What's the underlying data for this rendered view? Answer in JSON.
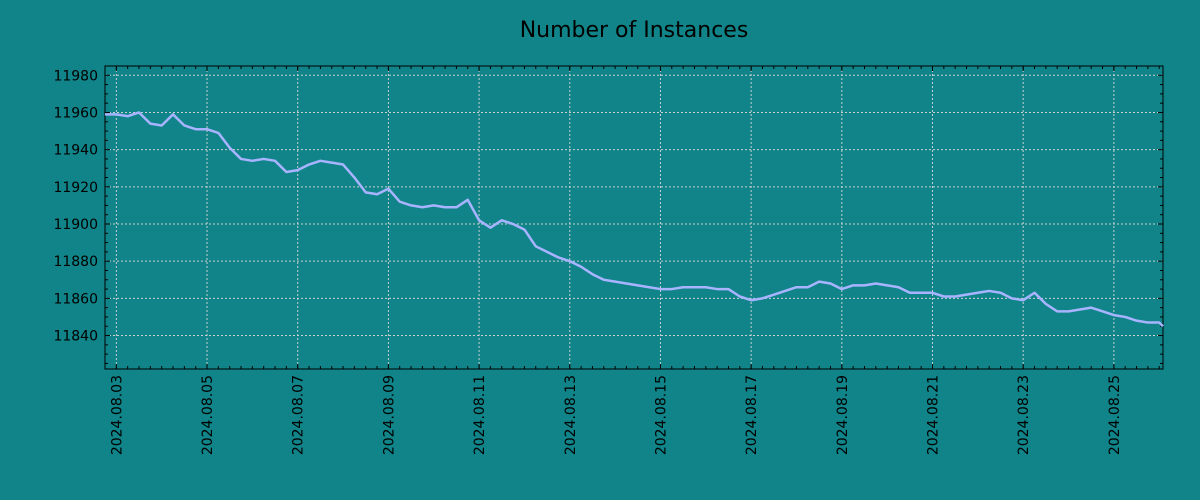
{
  "colors": {
    "background": "#108488",
    "line": "#a8b4ff",
    "grid": "#c8d0d0",
    "axis": "#000000"
  },
  "chart_data": {
    "type": "line",
    "title": "Number of Instances",
    "xlabel": "",
    "ylabel": "",
    "grid": true,
    "x_axis_type": "date",
    "x_tick_labels": [
      "2024.08.03",
      "2024.08.05",
      "2024.08.07",
      "2024.08.09",
      "2024.08.11",
      "2024.08.13",
      "2024.08.15",
      "2024.08.17",
      "2024.08.19",
      "2024.08.21",
      "2024.08.23",
      "2024.08.25"
    ],
    "y_tick_labels": [
      "11840",
      "11860",
      "11880",
      "11900",
      "11920",
      "11940",
      "11960",
      "11980"
    ],
    "ylim": [
      11822,
      11985
    ],
    "xlim": [
      "2024-08-02T18:00",
      "2024-08-26T02:00"
    ],
    "series": [
      {
        "x": [
          "2024-08-02T18:00",
          "2024-08-03T00:00",
          "2024-08-03T06:00",
          "2024-08-03T12:00",
          "2024-08-03T18:00",
          "2024-08-04T00:00",
          "2024-08-04T06:00",
          "2024-08-04T12:00",
          "2024-08-04T18:00",
          "2024-08-05T00:00",
          "2024-08-05T06:00",
          "2024-08-05T12:00",
          "2024-08-05T18:00",
          "2024-08-06T00:00",
          "2024-08-06T06:00",
          "2024-08-06T12:00",
          "2024-08-06T18:00",
          "2024-08-07T00:00",
          "2024-08-07T06:00",
          "2024-08-07T12:00",
          "2024-08-07T18:00",
          "2024-08-08T00:00",
          "2024-08-08T06:00",
          "2024-08-08T12:00",
          "2024-08-08T18:00",
          "2024-08-09T00:00",
          "2024-08-09T06:00",
          "2024-08-09T12:00",
          "2024-08-09T18:00",
          "2024-08-10T00:00",
          "2024-08-10T06:00",
          "2024-08-10T12:00",
          "2024-08-10T18:00",
          "2024-08-11T00:00",
          "2024-08-11T06:00",
          "2024-08-11T12:00",
          "2024-08-11T18:00",
          "2024-08-12T00:00",
          "2024-08-12T06:00",
          "2024-08-12T12:00",
          "2024-08-12T18:00",
          "2024-08-13T00:00",
          "2024-08-13T06:00",
          "2024-08-13T12:00",
          "2024-08-13T18:00",
          "2024-08-14T00:00",
          "2024-08-14T06:00",
          "2024-08-14T12:00",
          "2024-08-14T18:00",
          "2024-08-15T00:00",
          "2024-08-15T06:00",
          "2024-08-15T12:00",
          "2024-08-15T18:00",
          "2024-08-16T00:00",
          "2024-08-16T06:00",
          "2024-08-16T12:00",
          "2024-08-16T18:00",
          "2024-08-17T00:00",
          "2024-08-17T06:00",
          "2024-08-17T12:00",
          "2024-08-17T18:00",
          "2024-08-18T00:00",
          "2024-08-18T06:00",
          "2024-08-18T12:00",
          "2024-08-18T18:00",
          "2024-08-19T00:00",
          "2024-08-19T06:00",
          "2024-08-19T12:00",
          "2024-08-19T18:00",
          "2024-08-20T00:00",
          "2024-08-20T06:00",
          "2024-08-20T12:00",
          "2024-08-20T18:00",
          "2024-08-21T00:00",
          "2024-08-21T06:00",
          "2024-08-21T12:00",
          "2024-08-21T18:00",
          "2024-08-22T00:00",
          "2024-08-22T06:00",
          "2024-08-22T12:00",
          "2024-08-22T18:00",
          "2024-08-23T00:00",
          "2024-08-23T06:00",
          "2024-08-23T12:00",
          "2024-08-23T18:00",
          "2024-08-24T00:00",
          "2024-08-24T06:00",
          "2024-08-24T12:00",
          "2024-08-24T18:00",
          "2024-08-25T00:00",
          "2024-08-25T06:00",
          "2024-08-25T12:00",
          "2024-08-25T18:00",
          "2024-08-26T00:00",
          "2024-08-26T02:00"
        ],
        "y": [
          11959,
          11959,
          11958,
          11960,
          11954,
          11953,
          11959,
          11953,
          11951,
          11951,
          11949,
          11941,
          11935,
          11934,
          11935,
          11934,
          11928,
          11929,
          11932,
          11934,
          11933,
          11932,
          11925,
          11917,
          11916,
          11919,
          11912,
          11910,
          11909,
          11910,
          11909,
          11909,
          11913,
          11902,
          11898,
          11902,
          11900,
          11897,
          11888,
          11885,
          11882,
          11880,
          11877,
          11873,
          11870,
          11869,
          11868,
          11867,
          11866,
          11865,
          11865,
          11866,
          11866,
          11866,
          11865,
          11865,
          11861,
          11859,
          11860,
          11862,
          11864,
          11866,
          11866,
          11869,
          11868,
          11865,
          11867,
          11867,
          11868,
          11867,
          11866,
          11863,
          11863,
          11863,
          11861,
          11861,
          11862,
          11863,
          11864,
          11863,
          11860,
          11859,
          11863,
          11857,
          11853,
          11853,
          11854,
          11855,
          11853,
          11851,
          11850,
          11848,
          11847,
          11847,
          11845
        ]
      }
    ]
  }
}
